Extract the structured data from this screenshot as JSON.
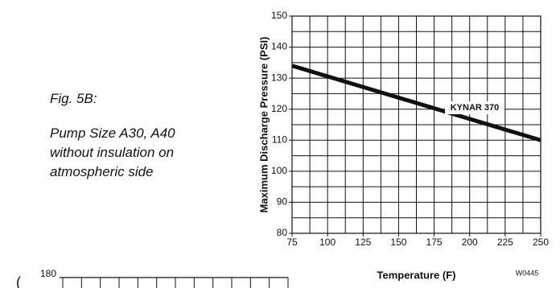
{
  "figure": {
    "label": "Fig. 5B:",
    "caption_lines": [
      "Pump Size A30, A40",
      "without insulation on",
      "atmospheric side"
    ],
    "code": "W0445"
  },
  "chart_data": [
    {
      "type": "line",
      "xlabel": "Temperature (F)",
      "ylabel": "Maximum Discharge Pressure (PSI)",
      "x": [
        75,
        250
      ],
      "series": [
        {
          "name": "KYNAR 370",
          "color": "#111111",
          "values": [
            134,
            110
          ]
        }
      ],
      "xlim": [
        75,
        250
      ],
      "xticks": [
        75,
        100,
        125,
        150,
        175,
        200,
        225,
        250
      ],
      "ylim": [
        80,
        150
      ],
      "yticks": [
        80,
        90,
        100,
        110,
        120,
        130,
        140,
        150
      ],
      "grid": true,
      "minor_grid": true
    },
    {
      "type": "line",
      "yticks": [
        180
      ],
      "grid": true
    }
  ]
}
